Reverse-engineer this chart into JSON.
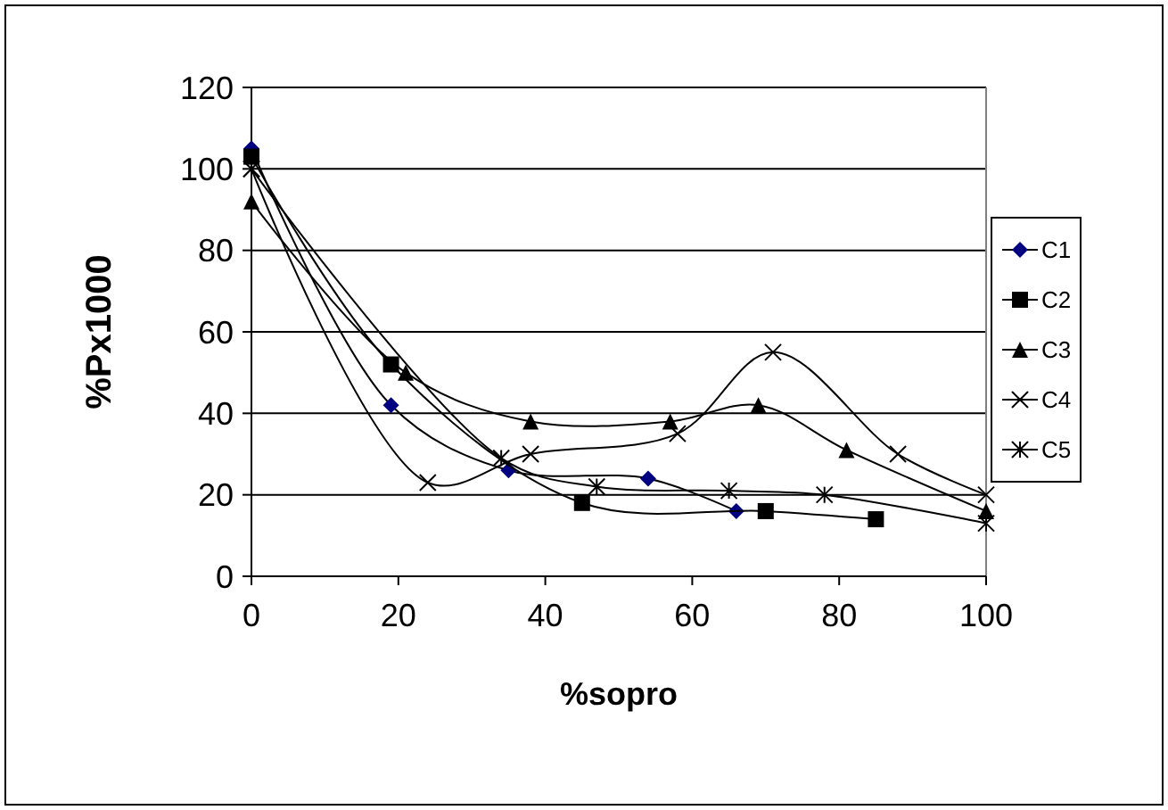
{
  "chart_data": {
    "type": "line",
    "xlabel": "%sopro",
    "ylabel": "%Px1000",
    "xlim": [
      0,
      100
    ],
    "xticks": [
      0,
      20,
      40,
      60,
      80,
      100
    ],
    "ylim": [
      0,
      120
    ],
    "yticks": [
      0,
      20,
      40,
      60,
      80,
      100,
      120
    ],
    "grid": "y",
    "legend": "right",
    "series": [
      {
        "name": "C1",
        "color": "#000080",
        "marker": "diamond",
        "x": [
          0,
          19,
          35,
          54,
          66
        ],
        "values": [
          105,
          42,
          26,
          24,
          16
        ]
      },
      {
        "name": "C2",
        "color": "#000000",
        "marker": "square",
        "x": [
          0,
          19,
          45,
          70,
          85
        ],
        "values": [
          103,
          52,
          18,
          16,
          14
        ]
      },
      {
        "name": "C3",
        "color": "#000000",
        "marker": "triangle",
        "x": [
          0,
          21,
          38,
          57,
          69,
          81,
          100
        ],
        "values": [
          92,
          50,
          38,
          38,
          42,
          31,
          16
        ]
      },
      {
        "name": "C4",
        "color": "#000000",
        "marker": "cross",
        "x": [
          0,
          24,
          38,
          58,
          71,
          88,
          100
        ],
        "values": [
          100,
          23,
          30,
          35,
          55,
          30,
          20
        ]
      },
      {
        "name": "C5",
        "color": "#000000",
        "marker": "cross",
        "x": [
          0,
          34,
          47,
          65,
          78,
          100
        ],
        "values": [
          100,
          29,
          22,
          21,
          20,
          13
        ]
      }
    ]
  }
}
